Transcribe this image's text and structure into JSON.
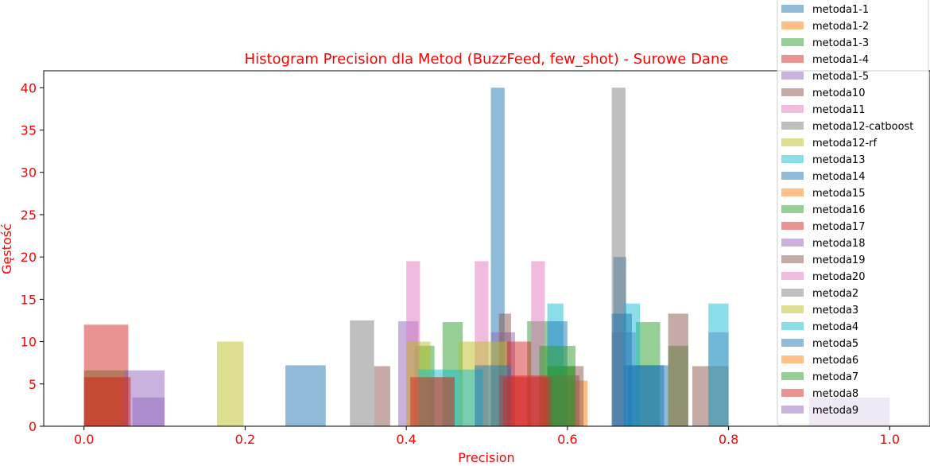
{
  "chart_data": {
    "type": "bar",
    "title": "Histogram Precision dla Metod (BuzzFeed, few_shot) - Surowe Dane",
    "xlabel": "Precision",
    "ylabel": "Gęstość",
    "xlim": [
      -0.05,
      1.05
    ],
    "ylim": [
      0,
      42
    ],
    "xticks": [
      "0.0",
      "0.2",
      "0.4",
      "0.6",
      "0.8",
      "1.0"
    ],
    "yticks": [
      "0",
      "5",
      "10",
      "15",
      "20",
      "25",
      "30",
      "35",
      "40"
    ],
    "legend_position": "top-right",
    "series": [
      {
        "name": "metoda1-1",
        "color": "#1f77b4",
        "bars": [
          {
            "x0": 0.25,
            "x1": 0.3,
            "y": 7.2
          },
          {
            "x0": 0.505,
            "x1": 0.522,
            "y": 40
          },
          {
            "x0": 0.657,
            "x1": 0.673,
            "y": 20
          }
        ]
      },
      {
        "name": "metoda1-2",
        "color": "#ff7f0e",
        "bars": [
          {
            "x0": 0.0,
            "x1": 0.055,
            "y": 5.8
          },
          {
            "x0": 0.405,
            "x1": 0.46,
            "y": 5.8
          },
          {
            "x0": 0.57,
            "x1": 0.625,
            "y": 5.4
          }
        ]
      },
      {
        "name": "metoda1-3",
        "color": "#2ca02c",
        "bars": [
          {
            "x0": 0.0,
            "x1": 0.055,
            "y": 6.6
          },
          {
            "x0": 0.41,
            "x1": 0.435,
            "y": 9.5
          },
          {
            "x0": 0.445,
            "x1": 0.47,
            "y": 12.3
          },
          {
            "x0": 0.55,
            "x1": 0.575,
            "y": 12.4
          },
          {
            "x0": 0.685,
            "x1": 0.715,
            "y": 12.3
          },
          {
            "x0": 0.725,
            "x1": 0.75,
            "y": 9.5
          }
        ]
      },
      {
        "name": "metoda1-4",
        "color": "#d62728",
        "bars": [
          {
            "x0": 0.0,
            "x1": 0.055,
            "y": 12
          }
        ]
      },
      {
        "name": "metoda1-5",
        "color": "#9467bd",
        "bars": [
          {
            "x0": 0.05,
            "x1": 0.1,
            "y": 6.6
          },
          {
            "x0": 0.39,
            "x1": 0.415,
            "y": 12.4
          },
          {
            "x0": 0.505,
            "x1": 0.535,
            "y": 11.1
          },
          {
            "x0": 0.655,
            "x1": 0.685,
            "y": 11.1
          },
          {
            "x0": 0.775,
            "x1": 0.8,
            "y": 11.1
          }
        ]
      },
      {
        "name": "metoda10",
        "color": "#8c564b",
        "bars": [
          {
            "x0": 0.36,
            "x1": 0.38,
            "y": 7.1
          },
          {
            "x0": 0.515,
            "x1": 0.53,
            "y": 13.3
          },
          {
            "x0": 0.575,
            "x1": 0.62,
            "y": 7.1
          },
          {
            "x0": 0.725,
            "x1": 0.75,
            "y": 13.3
          },
          {
            "x0": 0.755,
            "x1": 0.8,
            "y": 7.1
          }
        ]
      },
      {
        "name": "metoda11",
        "color": "#e377c2",
        "bars": [
          {
            "x0": 0.4,
            "x1": 0.417,
            "y": 19.5
          },
          {
            "x0": 0.485,
            "x1": 0.502,
            "y": 19.5
          },
          {
            "x0": 0.555,
            "x1": 0.572,
            "y": 19.5
          }
        ]
      },
      {
        "name": "metoda12-catboost",
        "color": "#7f7f7f",
        "bars": [
          {
            "x0": 0.33,
            "x1": 0.36,
            "y": 12.5
          },
          {
            "x0": 0.655,
            "x1": 0.672,
            "y": 40
          }
        ]
      },
      {
        "name": "metoda12-rf",
        "color": "#bcbd22",
        "bars": [
          {
            "x0": 0.165,
            "x1": 0.198,
            "y": 10
          },
          {
            "x0": 0.4,
            "x1": 0.43,
            "y": 10
          },
          {
            "x0": 0.465,
            "x1": 0.5,
            "y": 10
          },
          {
            "x0": 0.5,
            "x1": 0.525,
            "y": 10
          }
        ]
      },
      {
        "name": "metoda13",
        "color": "#17becf",
        "bars": [
          {
            "x0": 0.415,
            "x1": 0.495,
            "y": 6.7
          },
          {
            "x0": 0.575,
            "x1": 0.595,
            "y": 14.5
          },
          {
            "x0": 0.67,
            "x1": 0.69,
            "y": 14.5
          },
          {
            "x0": 0.775,
            "x1": 0.8,
            "y": 14.5
          }
        ]
      },
      {
        "name": "metoda14",
        "color": "#1f77b4",
        "bars": [
          {
            "x0": 0.575,
            "x1": 0.6,
            "y": 12.4
          },
          {
            "x0": 0.655,
            "x1": 0.68,
            "y": 13.3
          },
          {
            "x0": 0.67,
            "x1": 0.725,
            "y": 7.2
          }
        ]
      },
      {
        "name": "metoda15",
        "color": "#ff7f0e",
        "bars": [
          {
            "x0": 0.515,
            "x1": 0.53,
            "y": 6.0
          }
        ]
      },
      {
        "name": "metoda16",
        "color": "#2ca02c",
        "bars": [
          {
            "x0": 0.565,
            "x1": 0.61,
            "y": 9.5
          }
        ]
      },
      {
        "name": "metoda17",
        "color": "#d62728",
        "bars": [
          {
            "x0": 0.525,
            "x1": 0.555,
            "y": 10
          },
          {
            "x0": 0.515,
            "x1": 0.575,
            "y": 6.0
          }
        ]
      },
      {
        "name": "metoda18",
        "color": "#9467bd",
        "bars": [
          {
            "x0": 0.06,
            "x1": 0.1,
            "y": 3.4
          },
          {
            "x0": 0.9,
            "x1": 1.0,
            "y": 3.4
          }
        ]
      },
      {
        "name": "metoda19",
        "color": "#8c564b",
        "bars": [
          {
            "x0": 0.58,
            "x1": 0.615,
            "y": 6.0
          }
        ]
      },
      {
        "name": "metoda20",
        "color": "#e377c2",
        "bars": []
      },
      {
        "name": "metoda2",
        "color": "#7f7f7f",
        "bars": []
      },
      {
        "name": "metoda3",
        "color": "#bcbd22",
        "bars": []
      },
      {
        "name": "metoda4",
        "color": "#17becf",
        "bars": []
      },
      {
        "name": "metoda5",
        "color": "#1f77b4",
        "bars": [
          {
            "x0": 0.485,
            "x1": 0.53,
            "y": 7.2
          },
          {
            "x0": 0.675,
            "x1": 0.72,
            "y": 7.2
          }
        ]
      },
      {
        "name": "metoda6",
        "color": "#ff7f0e",
        "bars": []
      },
      {
        "name": "metoda7",
        "color": "#2ca02c",
        "bars": [
          {
            "x0": 0.575,
            "x1": 0.61,
            "y": 7.1
          }
        ]
      },
      {
        "name": "metoda8",
        "color": "#d62728",
        "bars": [
          {
            "x0": 0.405,
            "x1": 0.46,
            "y": 5.8
          },
          {
            "x0": 0.52,
            "x1": 0.58,
            "y": 5.8
          },
          {
            "x0": 0.0,
            "x1": 0.058,
            "y": 5.8
          }
        ]
      },
      {
        "name": "metoda9",
        "color": "#9467bd",
        "bars": [
          {
            "x0": 0.9,
            "x1": 1.0,
            "y": 3.4
          }
        ]
      }
    ]
  }
}
